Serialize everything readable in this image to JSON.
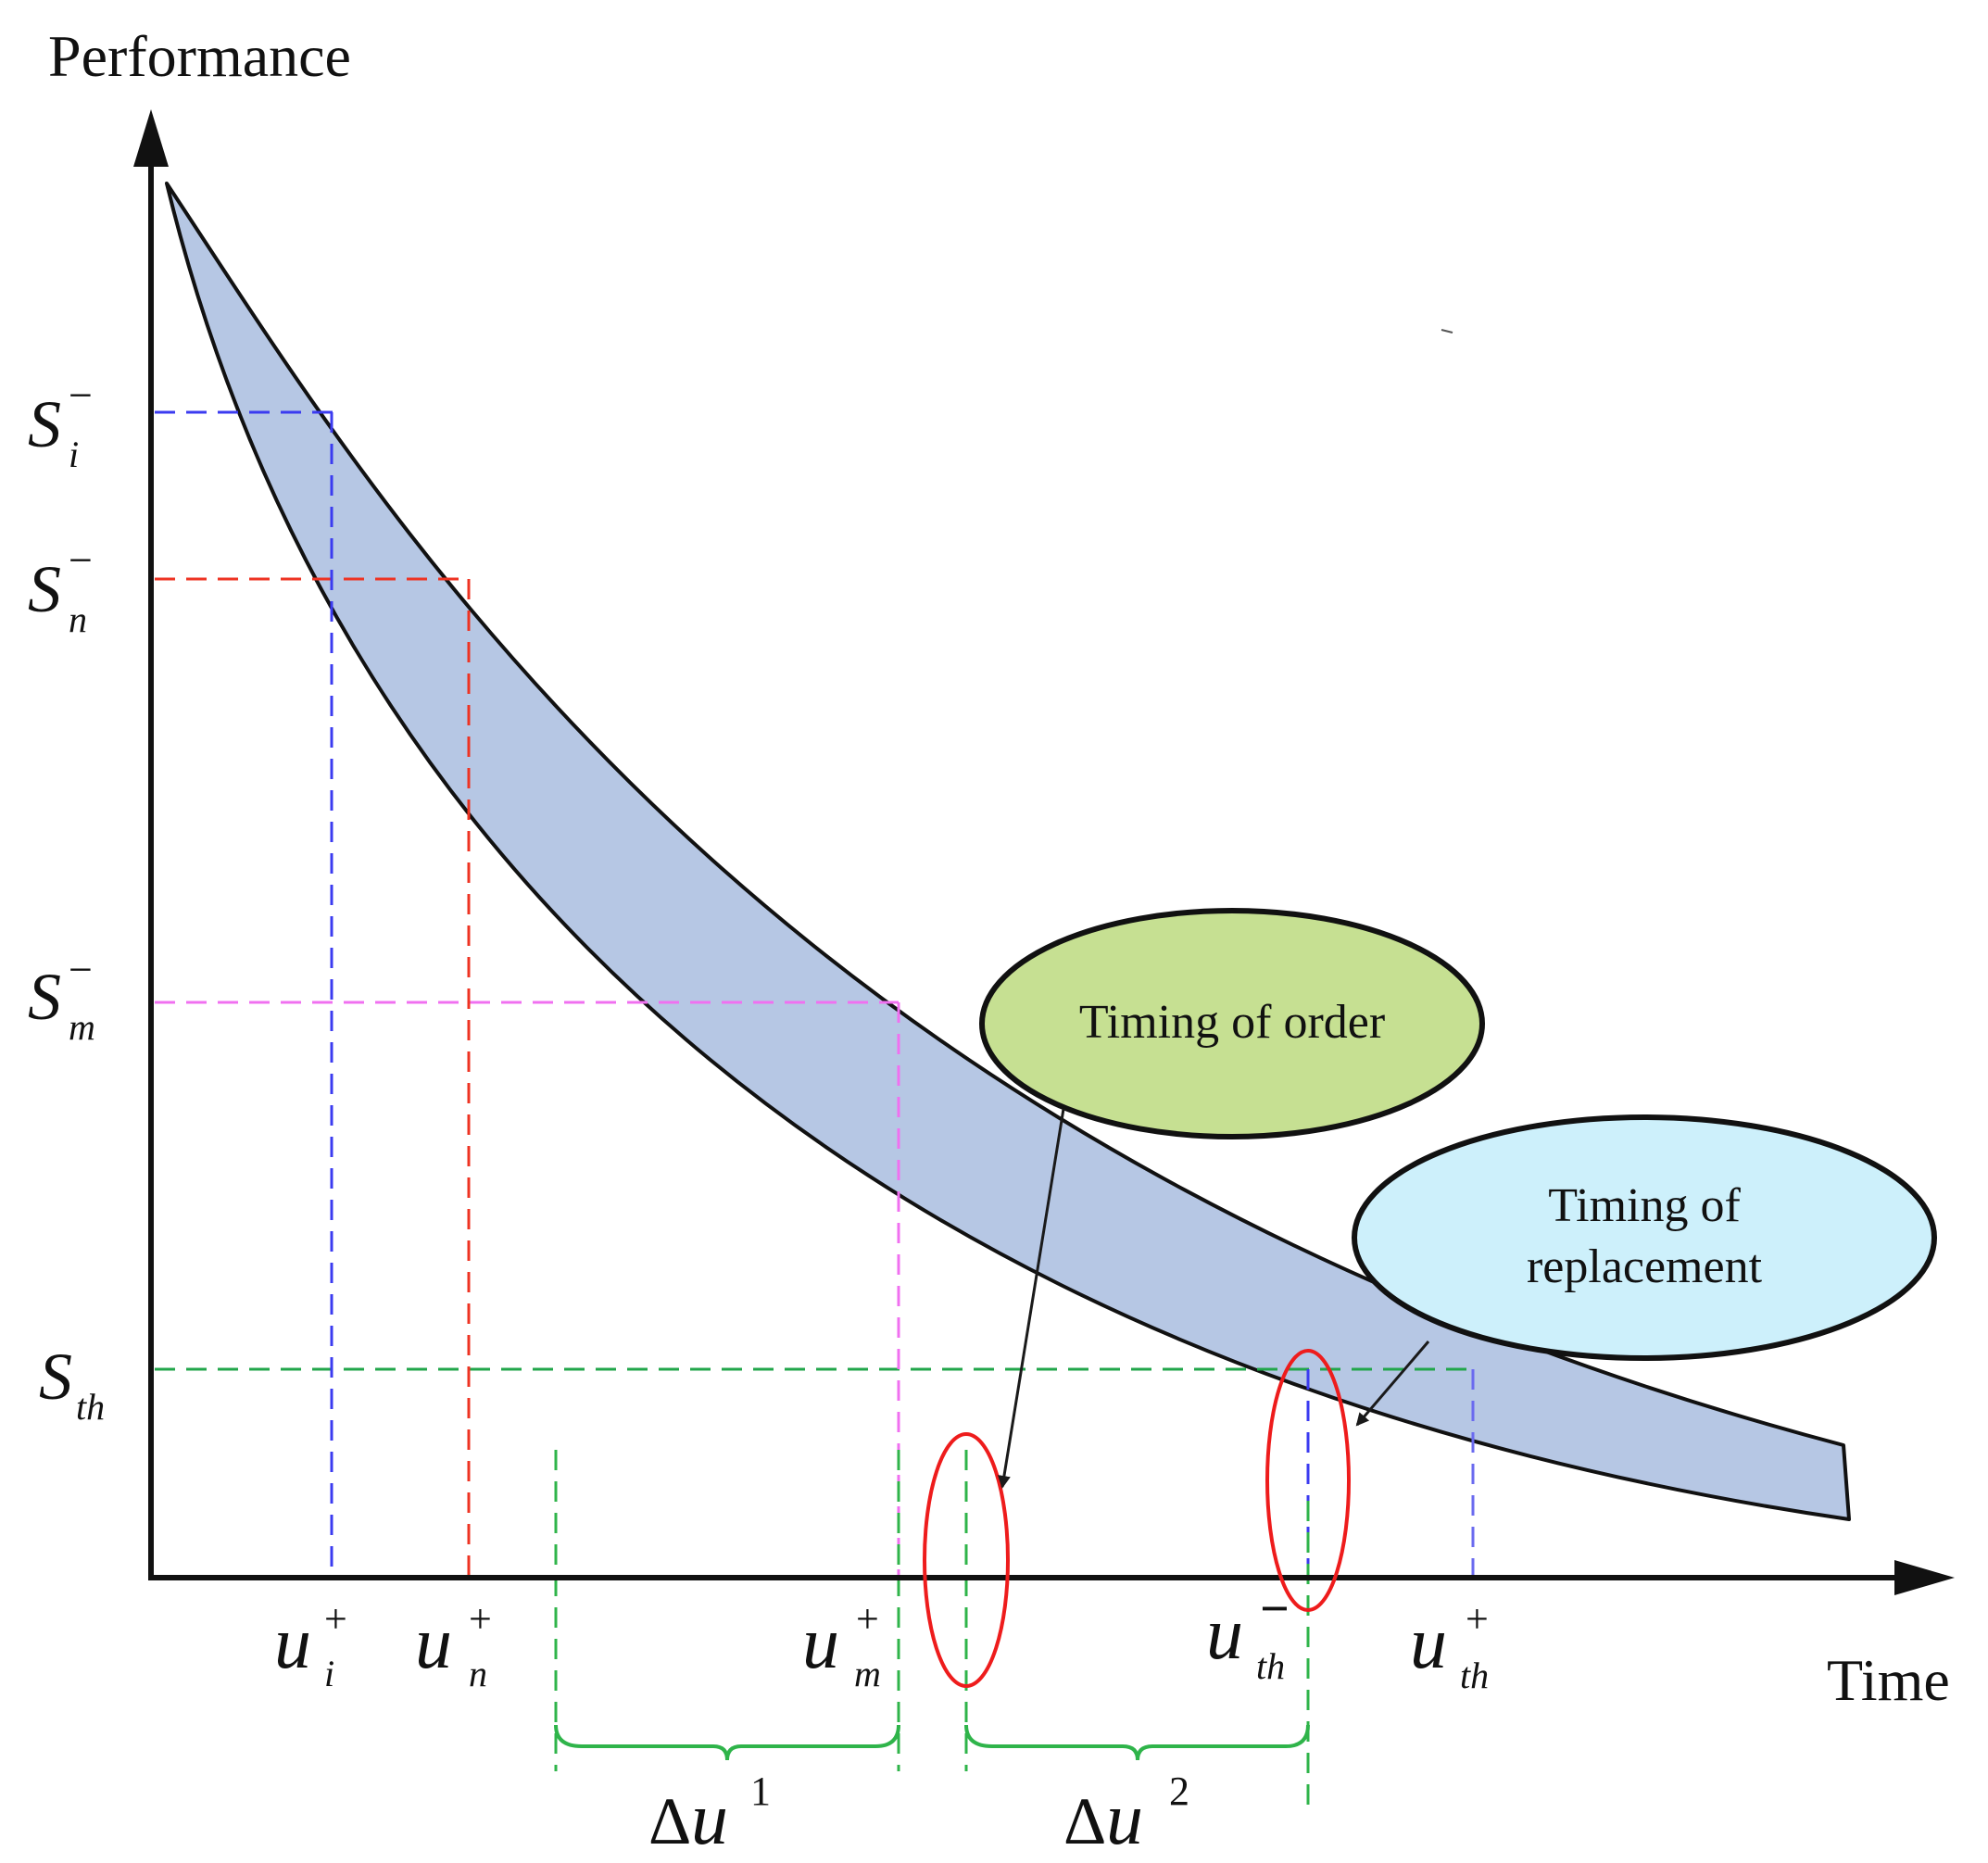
{
  "axes": {
    "y_label": "Performance",
    "x_label": "Time"
  },
  "y_ticks": [
    {
      "base": "S",
      "sub": "i",
      "sup": "−"
    },
    {
      "base": "S",
      "sub": "n",
      "sup": "−"
    },
    {
      "base": "S",
      "sub": "m",
      "sup": "−"
    },
    {
      "base": "S",
      "sub": "th",
      "sup": ""
    }
  ],
  "x_ticks": [
    {
      "base": "u",
      "sub": "i",
      "sup": "+"
    },
    {
      "base": "u",
      "sub": "n",
      "sup": "+"
    },
    {
      "base": "u",
      "sub": "m",
      "sup": "+"
    },
    {
      "base": "u",
      "sub": "th",
      "sup": "−"
    },
    {
      "base": "u",
      "sub": "th",
      "sup": "+"
    }
  ],
  "intervals": [
    {
      "delta": "Δ",
      "base": "u",
      "sup": "1"
    },
    {
      "delta": "Δ",
      "base": "u",
      "sup": "2"
    }
  ],
  "callouts": {
    "order": {
      "line1": "Timing of order",
      "color": "#c6e092"
    },
    "replacement": {
      "line1": "Timing of",
      "line2": "replacement",
      "color": "#cdf0fb"
    }
  },
  "colors": {
    "band_fill": "#b6c7e4",
    "i_line": "#3b3bf0",
    "n_line": "#ee3322",
    "m_line": "#f070f0",
    "th_line": "#21a64a",
    "bracket": "#2fb44a",
    "highlight": "#ee1c1c"
  }
}
